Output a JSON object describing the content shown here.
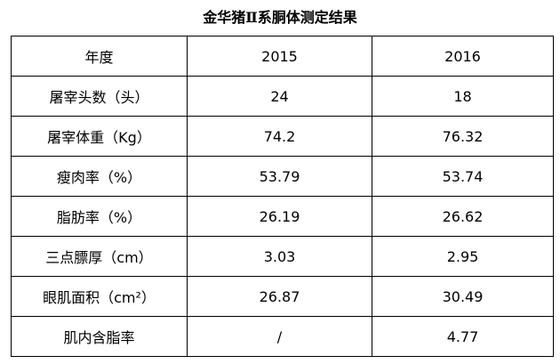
{
  "title": "金华猪Ⅱ系胴体测定结果",
  "table": {
    "header": [
      "年度",
      "2015",
      "2016"
    ],
    "rows": [
      [
        "屠宰头数（头）",
        "24",
        "18"
      ],
      [
        "屠宰体重（Kg）",
        "74.2",
        "76.32"
      ],
      [
        "瘦肉率（%）",
        "53.79",
        "53.74"
      ],
      [
        "脂肪率（%）",
        "26.19",
        "26.62"
      ],
      [
        "三点膘厚（cm）",
        "3.03",
        "2.95"
      ],
      [
        "眼肌面积（cm²）",
        "26.87",
        "30.49"
      ],
      [
        "肌内含脂率",
        "/",
        "4.77"
      ]
    ]
  }
}
